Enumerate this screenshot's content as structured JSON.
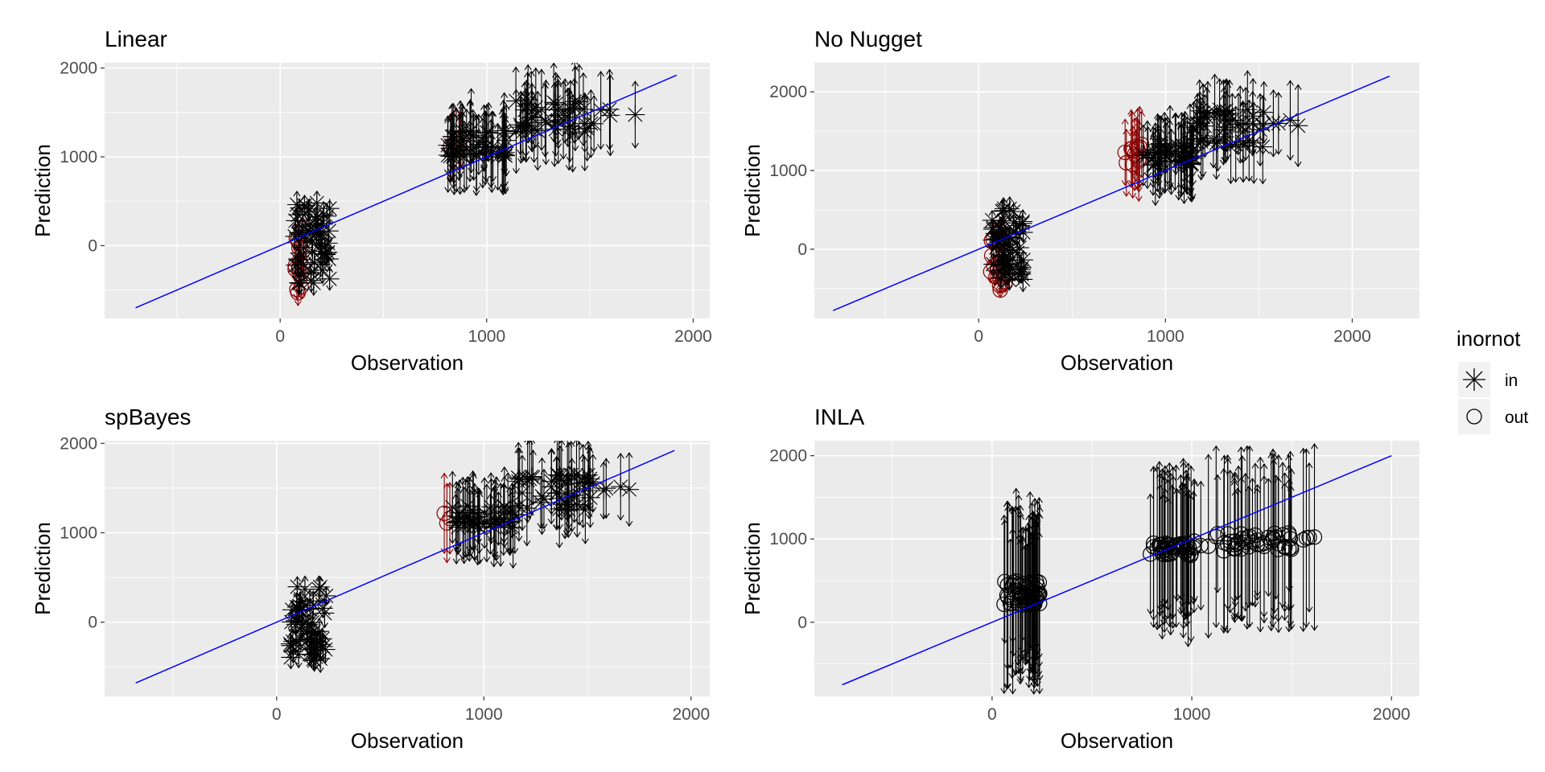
{
  "chart_data": [
    {
      "type": "scatter",
      "title": "Linear",
      "xlabel": "Observation",
      "ylabel": "Prediction",
      "xlim": [
        -850,
        2080
      ],
      "ylim": [
        -820,
        2060
      ],
      "xticks": [
        0,
        1000,
        2000
      ],
      "yticks": [
        0,
        1000,
        2000
      ],
      "line": {
        "x": [
          -700,
          1920
        ],
        "y": [
          -700,
          1920
        ],
        "color": "#0000ff"
      },
      "clusters": [
        {
          "x": [
            70,
            115
          ],
          "y": [
            -650,
            250
          ],
          "n": 14,
          "shape": "out",
          "err": 120
        },
        {
          "x": [
            70,
            240
          ],
          "y": [
            -450,
            480
          ],
          "n": 55,
          "shape": "in",
          "err": 120
        },
        {
          "x": [
            800,
            880
          ],
          "y": [
            1100,
            1250
          ],
          "n": 4,
          "shape": "out",
          "err": 380
        },
        {
          "x": [
            810,
            1100
          ],
          "y": [
            1000,
            1300
          ],
          "n": 50,
          "shape": "in",
          "err": 380
        },
        {
          "x": [
            1100,
            1520
          ],
          "y": [
            1250,
            1650
          ],
          "n": 45,
          "shape": "in",
          "err": 380
        },
        {
          "x": [
            1550,
            1720
          ],
          "y": [
            1450,
            1560
          ],
          "n": 4,
          "shape": "in",
          "err": 400
        }
      ]
    },
    {
      "type": "scatter",
      "title": "No Nugget",
      "xlabel": "Observation",
      "ylabel": "Prediction",
      "xlim": [
        -880,
        2360
      ],
      "ylim": [
        -880,
        2370
      ],
      "xticks": [
        0,
        1000,
        2000
      ],
      "yticks": [
        0,
        1000,
        2000
      ],
      "line": {
        "x": [
          -780,
          2200
        ],
        "y": [
          -780,
          2200
        ],
        "color": "#0000ff"
      },
      "clusters": [
        {
          "x": [
            60,
            150
          ],
          "y": [
            -550,
            250
          ],
          "n": 22,
          "shape": "out",
          "err": 120
        },
        {
          "x": [
            70,
            240
          ],
          "y": [
            -400,
            520
          ],
          "n": 55,
          "shape": "in",
          "err": 130
        },
        {
          "x": [
            780,
            880
          ],
          "y": [
            1050,
            1350
          ],
          "n": 14,
          "shape": "out",
          "err": 420
        },
        {
          "x": [
            880,
            1150
          ],
          "y": [
            1050,
            1350
          ],
          "n": 45,
          "shape": "in",
          "err": 420
        },
        {
          "x": [
            1150,
            1530
          ],
          "y": [
            1250,
            1800
          ],
          "n": 45,
          "shape": "in",
          "err": 420
        },
        {
          "x": [
            1550,
            1720
          ],
          "y": [
            1550,
            1650
          ],
          "n": 4,
          "shape": "in",
          "err": 430
        }
      ]
    },
    {
      "type": "scatter",
      "title": "spBayes",
      "xlabel": "Observation",
      "ylabel": "Prediction",
      "xlim": [
        -830,
        2090
      ],
      "ylim": [
        -830,
        2030
      ],
      "xticks": [
        0,
        1000,
        2000
      ],
      "yticks": [
        0,
        1000,
        2000
      ],
      "line": {
        "x": [
          -680,
          1920
        ],
        "y": [
          -680,
          1920
        ],
        "color": "#0000ff"
      },
      "clusters": [
        {
          "x": [
            60,
            240
          ],
          "y": [
            -500,
            400
          ],
          "n": 55,
          "shape": "in",
          "err": 130
        },
        {
          "x": [
            790,
            860
          ],
          "y": [
            1100,
            1250
          ],
          "n": 3,
          "shape": "out",
          "err": 380
        },
        {
          "x": [
            830,
            1150
          ],
          "y": [
            1050,
            1300
          ],
          "n": 45,
          "shape": "in",
          "err": 380
        },
        {
          "x": [
            1150,
            1530
          ],
          "y": [
            1250,
            1650
          ],
          "n": 45,
          "shape": "in",
          "err": 380
        },
        {
          "x": [
            1550,
            1720
          ],
          "y": [
            1450,
            1560
          ],
          "n": 4,
          "shape": "in",
          "err": 400
        }
      ]
    },
    {
      "type": "scatter",
      "title": "INLA",
      "xlabel": "Observation",
      "ylabel": "Prediction",
      "xlim": [
        -890,
        2140
      ],
      "ylim": [
        -890,
        2180
      ],
      "xticks": [
        0,
        1000,
        2000
      ],
      "yticks": [
        0,
        1000,
        2000
      ],
      "line": {
        "x": [
          -750,
          2000
        ],
        "y": [
          -750,
          2000
        ],
        "color": "#0000ff"
      },
      "clusters": [
        {
          "x": [
            60,
            240
          ],
          "y": [
            200,
            500
          ],
          "n": 55,
          "shape": "out",
          "err": 900
        },
        {
          "x": [
            790,
            1000
          ],
          "y": [
            800,
            950
          ],
          "n": 40,
          "shape": "out",
          "err": 880
        },
        {
          "x": [
            1000,
            1530
          ],
          "y": [
            850,
            1080
          ],
          "n": 50,
          "shape": "out",
          "err": 880
        },
        {
          "x": [
            1550,
            1720
          ],
          "y": [
            980,
            1030
          ],
          "n": 4,
          "shape": "out",
          "err": 900
        }
      ]
    }
  ],
  "legend": {
    "title": "inornot",
    "items": [
      {
        "label": "in",
        "shape": "asterisk"
      },
      {
        "label": "out",
        "shape": "circle"
      }
    ]
  },
  "colors": {
    "panel_bg": "#ebebeb",
    "grid_major": "#ffffff",
    "points": "#000000",
    "out_small_obs": "#8b0000",
    "fit_line": "#0000ff"
  }
}
